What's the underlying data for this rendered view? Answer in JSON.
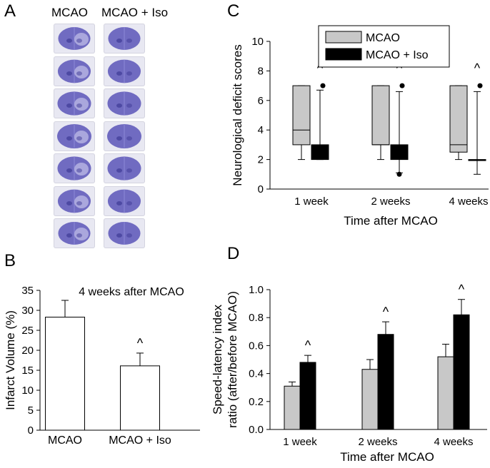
{
  "panel_a": {
    "letter": "A",
    "col_left": "MCAO",
    "col_right": "MCAO + Iso",
    "brain_color": "#5a55b8",
    "rows": 7
  },
  "panels": {
    "b_letter": "B",
    "c_letter": "C",
    "d_letter": "D"
  },
  "chart_data": [
    {
      "panel": "B",
      "type": "bar",
      "title": "4 weeks after MCAO",
      "ylabel": "Infarct Volume (%)",
      "xlabel": "",
      "ylim": [
        0,
        35
      ],
      "yticks": [
        0,
        5,
        10,
        15,
        20,
        25,
        30,
        35
      ],
      "categories": [
        "MCAO",
        "MCAO + Iso"
      ],
      "values": [
        28.3,
        16.1
      ],
      "errors": [
        4.2,
        3.2
      ],
      "bar_color": "#ffffff",
      "annotations": [
        {
          "category": "MCAO + Iso",
          "text": "^"
        }
      ],
      "grid": false
    },
    {
      "panel": "C",
      "type": "box",
      "ylabel": "Neurological deficit scores",
      "xlabel": "Time after MCAO",
      "ylim": [
        0,
        10
      ],
      "yticks": [
        0,
        2,
        4,
        6,
        8,
        10
      ],
      "categories": [
        "1 week",
        "2 weeks",
        "4 weeks"
      ],
      "legend": {
        "position": "top-right",
        "entries": [
          "MCAO",
          "MCAO + Iso"
        ]
      },
      "series": [
        {
          "name": "MCAO",
          "color": "#c8c8c8",
          "boxes": [
            {
              "whisker_low": 2,
              "q1": 3,
              "median": 4,
              "q3": 7,
              "whisker_high": 7,
              "outliers": []
            },
            {
              "whisker_low": 2,
              "q1": 3,
              "median": 3,
              "q3": 7,
              "whisker_high": 7,
              "outliers": []
            },
            {
              "whisker_low": 2,
              "q1": 2.5,
              "median": 3,
              "q3": 7,
              "whisker_high": 7,
              "outliers": []
            }
          ]
        },
        {
          "name": "MCAO + Iso",
          "color": "#000000",
          "boxes": [
            {
              "whisker_low": 2,
              "q1": 2,
              "median": 2,
              "q3": 3,
              "whisker_high": 6.7,
              "outliers": [
                7
              ]
            },
            {
              "whisker_low": 1.1,
              "q1": 2,
              "median": 2,
              "q3": 3,
              "whisker_high": 6.6,
              "outliers": [
                1,
                7
              ]
            },
            {
              "whisker_low": 1,
              "q1": 2,
              "median": 2,
              "q3": 2,
              "whisker_high": 6.6,
              "outliers": [
                7
              ]
            }
          ]
        }
      ],
      "annotations": [
        {
          "category": "1 week",
          "text": "^"
        },
        {
          "category": "2 weeks",
          "text": "^"
        },
        {
          "category": "4 weeks",
          "text": "^"
        }
      ],
      "grid": false
    },
    {
      "panel": "D",
      "type": "bar",
      "ylabel": "Speed-latency index ratio (after/before MCAO)",
      "ylabel_lines": [
        "Speed-latency index",
        "ratio (after/before MCAO)"
      ],
      "xlabel": "Time after MCAO",
      "ylim": [
        0,
        1.0
      ],
      "yticks": [
        "0.0",
        "0.2",
        "0.4",
        "0.6",
        "0.8",
        "1.0"
      ],
      "categories": [
        "1 week",
        "2 weeks",
        "4 weeks"
      ],
      "series": [
        {
          "name": "MCAO",
          "color": "#c8c8c8",
          "values": [
            0.31,
            0.43,
            0.52
          ],
          "errors": [
            0.03,
            0.07,
            0.09
          ]
        },
        {
          "name": "MCAO + Iso",
          "color": "#000000",
          "values": [
            0.48,
            0.68,
            0.82
          ],
          "errors": [
            0.05,
            0.09,
            0.11
          ]
        }
      ],
      "annotations": [
        {
          "category": "1 week",
          "text": "^"
        },
        {
          "category": "2 weeks",
          "text": "^"
        },
        {
          "category": "4 weeks",
          "text": "^"
        }
      ],
      "grid": false
    }
  ]
}
